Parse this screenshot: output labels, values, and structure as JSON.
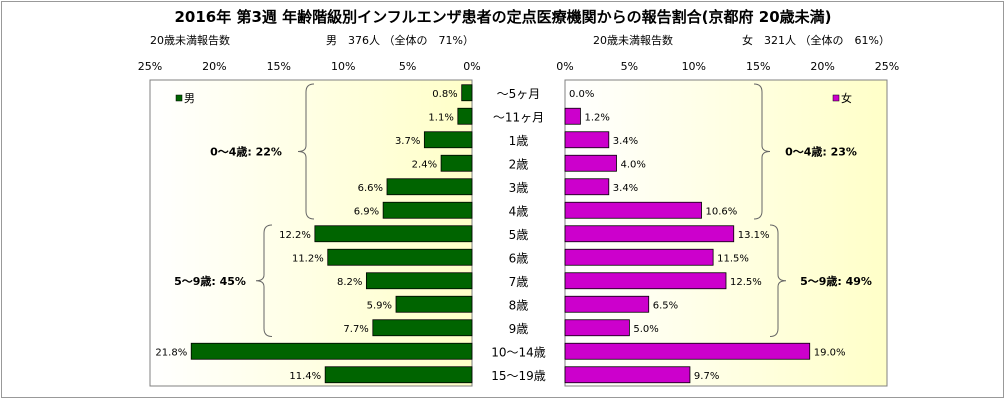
{
  "chart_data": {
    "type": "bar",
    "title": "2016年 第3週 年齢階級別インフルエンザ患者の定点医療機関からの報告割合(京都府 20歳未満)",
    "categories": [
      "～5ヶ月",
      "～11ヶ月",
      "1歳",
      "2歳",
      "3歳",
      "4歳",
      "5歳",
      "6歳",
      "7歳",
      "8歳",
      "9歳",
      "10～14歳",
      "15～19歳"
    ],
    "left_panel": {
      "caption": "20歳未満報告数",
      "summary": "男　376人 （全体の　71%）",
      "legend": "男",
      "color": "#006400",
      "xlim": [
        0,
        25
      ],
      "ticks": [
        "25%",
        "20%",
        "15%",
        "10%",
        "5%",
        "0%"
      ],
      "series": [
        {
          "name": "男",
          "values": [
            0.8,
            1.1,
            3.7,
            2.4,
            6.6,
            6.9,
            12.2,
            11.2,
            8.2,
            5.9,
            7.7,
            21.8,
            11.4
          ]
        }
      ],
      "labels": [
        "0.8%",
        "1.1%",
        "3.7%",
        "2.4%",
        "6.6%",
        "6.9%",
        "12.2%",
        "11.2%",
        "8.2%",
        "5.9%",
        "7.7%",
        "21.8%",
        "11.4%"
      ],
      "groups": [
        {
          "label": "0～4歳: 22%",
          "from": 0,
          "to": 5
        },
        {
          "label": "5～9歳: 45%",
          "from": 6,
          "to": 10
        }
      ]
    },
    "right_panel": {
      "caption": "20歳未満報告数",
      "summary": "女　321人 （全体の　61%）",
      "legend": "女",
      "color": "#cc00cc",
      "xlim": [
        0,
        25
      ],
      "ticks": [
        "0%",
        "5%",
        "10%",
        "15%",
        "20%",
        "25%"
      ],
      "series": [
        {
          "name": "女",
          "values": [
            0.0,
            1.2,
            3.4,
            4.0,
            3.4,
            10.6,
            13.1,
            11.5,
            12.5,
            6.5,
            5.0,
            19.0,
            9.7
          ]
        }
      ],
      "labels": [
        "0.0%",
        "1.2%",
        "3.4%",
        "4.0%",
        "3.4%",
        "10.6%",
        "13.1%",
        "11.5%",
        "12.5%",
        "6.5%",
        "5.0%",
        "19.0%",
        "9.7%"
      ],
      "groups": [
        {
          "label": "0～4歳: 23%",
          "from": 0,
          "to": 5
        },
        {
          "label": "5～9歳: 49%",
          "from": 6,
          "to": 10
        }
      ]
    }
  }
}
